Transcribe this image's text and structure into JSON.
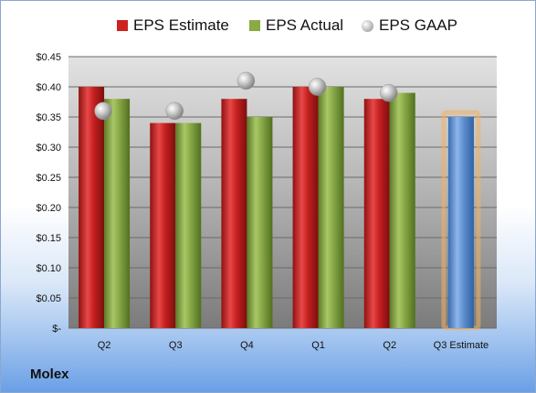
{
  "chart_data": {
    "type": "bar",
    "categories": [
      "Q2",
      "Q3",
      "Q4",
      "Q1",
      "Q2",
      "Q3 Estimate"
    ],
    "series": [
      {
        "name": "EPS Estimate",
        "color": "#cc2222",
        "values": [
          0.4,
          0.34,
          0.38,
          0.4,
          0.38,
          null
        ]
      },
      {
        "name": "EPS Actual",
        "color": "#8aaa44",
        "values": [
          0.38,
          0.34,
          0.35,
          0.4,
          0.39,
          null
        ]
      },
      {
        "name": "EPS GAAP",
        "color": "#a8a8a8",
        "marker": "sphere",
        "values": [
          0.36,
          0.36,
          0.41,
          0.4,
          0.39,
          null
        ]
      }
    ],
    "estimate_bar": {
      "category": "Q3 Estimate",
      "value": 0.35,
      "color": "#5d8fd0",
      "glow": "#f2b160"
    },
    "ylim": [
      0,
      0.45
    ],
    "yticks": [
      0,
      0.05,
      0.1,
      0.15,
      0.2,
      0.25,
      0.3,
      0.35,
      0.4,
      0.45
    ],
    "ytick_labels": [
      "$-",
      "$0.05",
      "$0.10",
      "$0.15",
      "$0.20",
      "$0.25",
      "$0.30",
      "$0.35",
      "$0.40",
      "$0.45"
    ],
    "legend_position": "top",
    "grid": true
  },
  "company": "Molex"
}
